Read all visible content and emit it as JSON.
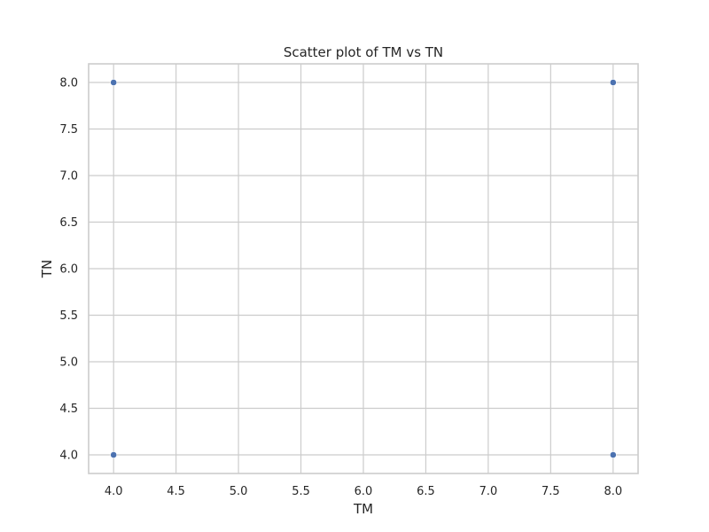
{
  "chart_data": {
    "type": "scatter",
    "title": "Scatter plot of TM vs TN",
    "xlabel": "TM",
    "ylabel": "TN",
    "xlim": [
      3.8,
      8.2
    ],
    "ylim": [
      3.8,
      8.2
    ],
    "xticks": [
      4.0,
      4.5,
      5.0,
      5.5,
      6.0,
      6.5,
      7.0,
      7.5,
      8.0
    ],
    "yticks": [
      4.0,
      4.5,
      5.0,
      5.5,
      6.0,
      6.5,
      7.0,
      7.5,
      8.0
    ],
    "xtick_labels": [
      "4.0",
      "4.5",
      "5.0",
      "5.5",
      "6.0",
      "6.5",
      "7.0",
      "7.5",
      "8.0"
    ],
    "ytick_labels": [
      "4.0",
      "4.5",
      "5.0",
      "5.5",
      "6.0",
      "6.5",
      "7.0",
      "7.5",
      "8.0"
    ],
    "grid": true,
    "series": [
      {
        "points": [
          {
            "x": 4.0,
            "y": 8.0
          },
          {
            "x": 8.0,
            "y": 8.0
          },
          {
            "x": 4.0,
            "y": 4.0
          },
          {
            "x": 8.0,
            "y": 4.0
          }
        ],
        "color": "#4c72b0"
      }
    ]
  }
}
